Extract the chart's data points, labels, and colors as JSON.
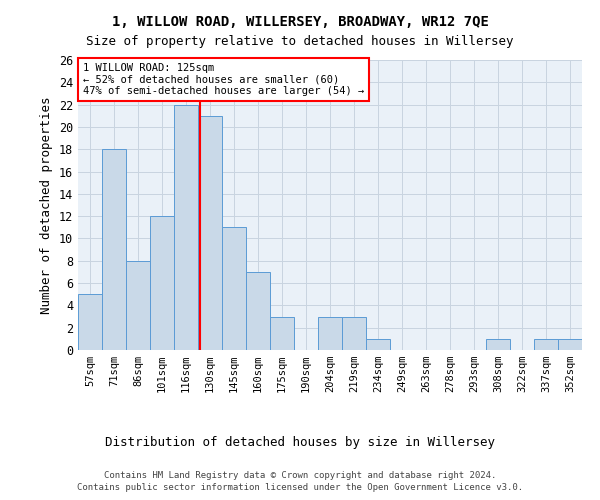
{
  "title": "1, WILLOW ROAD, WILLERSEY, BROADWAY, WR12 7QE",
  "subtitle": "Size of property relative to detached houses in Willersey",
  "xlabel_bottom": "Distribution of detached houses by size in Willersey",
  "ylabel": "Number of detached properties",
  "footer_line1": "Contains HM Land Registry data © Crown copyright and database right 2024.",
  "footer_line2": "Contains public sector information licensed under the Open Government Licence v3.0.",
  "bin_labels": [
    "57sqm",
    "71sqm",
    "86sqm",
    "101sqm",
    "116sqm",
    "130sqm",
    "145sqm",
    "160sqm",
    "175sqm",
    "190sqm",
    "204sqm",
    "219sqm",
    "234sqm",
    "249sqm",
    "263sqm",
    "278sqm",
    "293sqm",
    "308sqm",
    "322sqm",
    "337sqm",
    "352sqm"
  ],
  "bar_values": [
    5,
    18,
    8,
    12,
    22,
    21,
    11,
    7,
    3,
    0,
    3,
    3,
    1,
    0,
    0,
    0,
    0,
    1,
    0,
    1,
    1
  ],
  "bar_color": "#c9d9e8",
  "bar_edge_color": "#5b9bd5",
  "vline_x": 4.57,
  "annotation_text": "1 WILLOW ROAD: 125sqm\n← 52% of detached houses are smaller (60)\n47% of semi-detached houses are larger (54) →",
  "annotation_box_color": "white",
  "annotation_box_edgecolor": "red",
  "vline_color": "red",
  "grid_color": "#c8d4e0",
  "background_color": "#eaf1f8",
  "ylim": [
    0,
    26
  ],
  "yticks": [
    0,
    2,
    4,
    6,
    8,
    10,
    12,
    14,
    16,
    18,
    20,
    22,
    24,
    26
  ]
}
